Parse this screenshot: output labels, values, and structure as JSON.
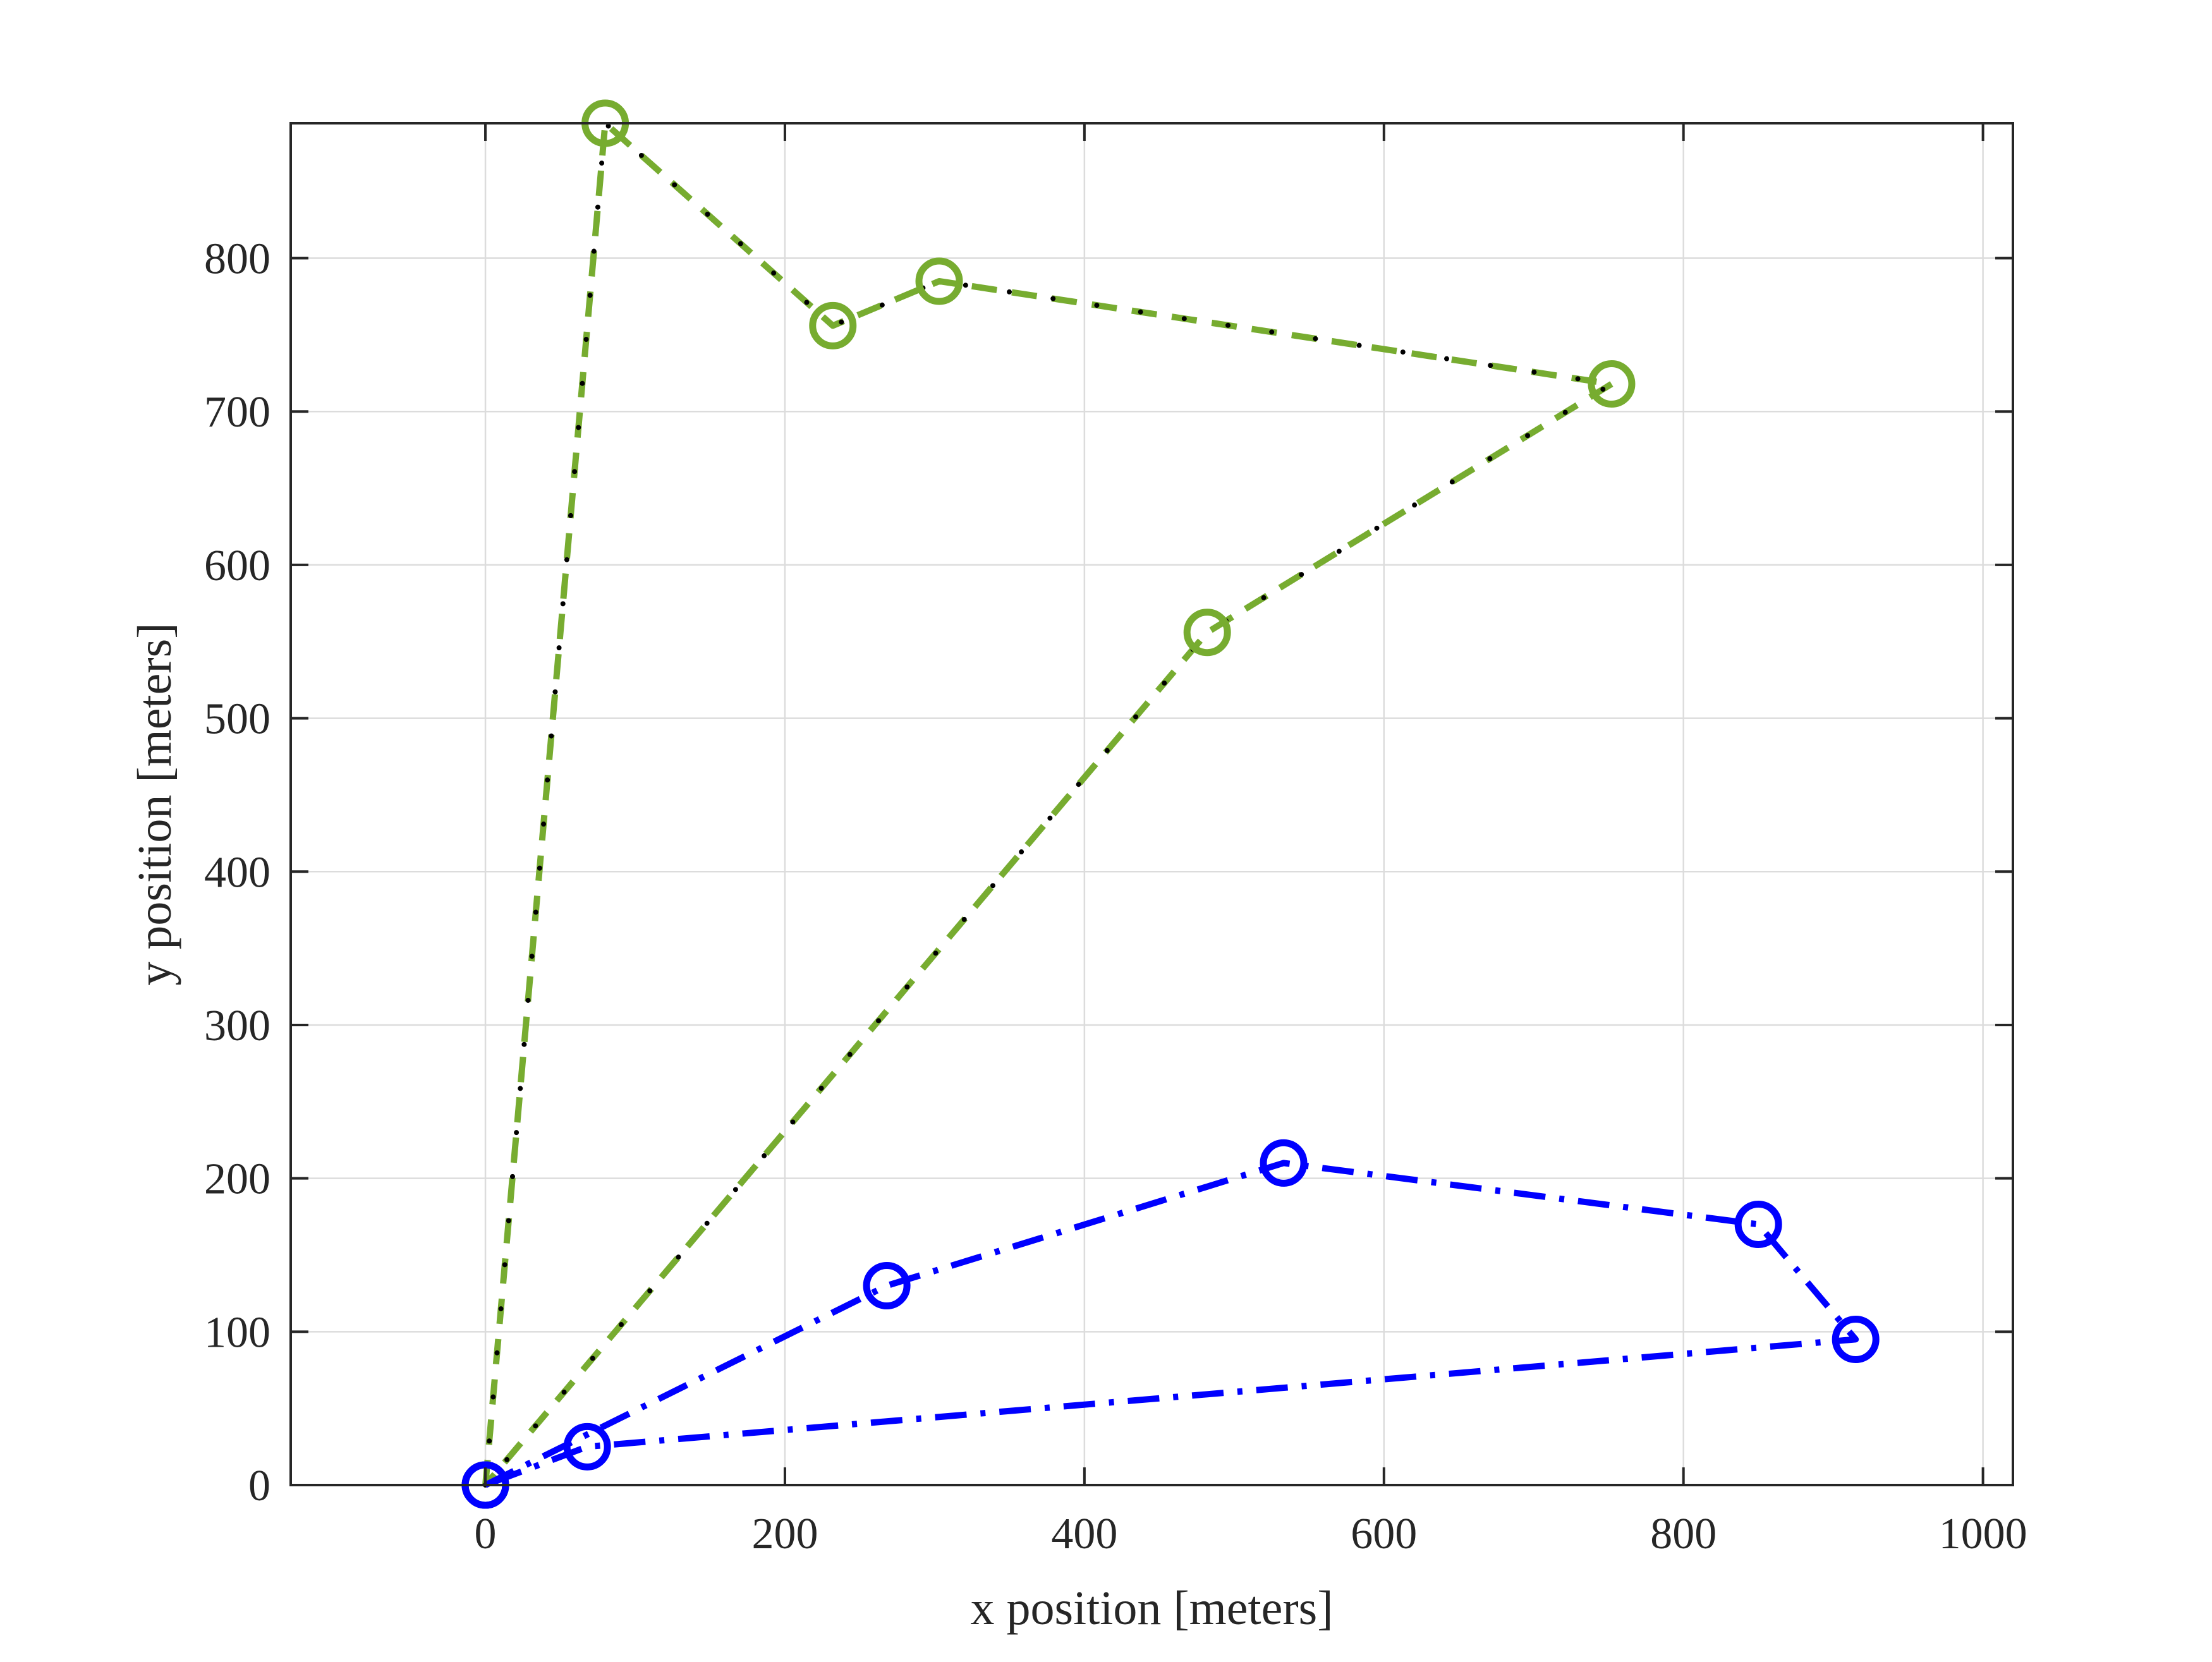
{
  "chart_data": {
    "type": "line",
    "title": "",
    "xlabel": "x position [meters]",
    "ylabel": "y position [meters]",
    "xlim": [
      -130,
      1020
    ],
    "ylim": [
      0,
      888
    ],
    "xticks": [
      0,
      200,
      400,
      600,
      800,
      1000
    ],
    "yticks": [
      0,
      100,
      200,
      300,
      400,
      500,
      600,
      700,
      800
    ],
    "grid": true,
    "legend": "none",
    "series": [
      {
        "color": "#77ac30",
        "line_style": "dashed with black dotted overlay",
        "marker": "circle",
        "x": [
          0,
          80,
          232,
          303,
          752,
          482,
          0
        ],
        "y": [
          0,
          888,
          756,
          785,
          718,
          556,
          0
        ]
      },
      {
        "color": "#0000ff",
        "line_style": "dash-dot",
        "marker": "circle",
        "x": [
          0,
          268,
          533,
          850,
          915,
          68,
          0
        ],
        "y": [
          0,
          130,
          210,
          170,
          95,
          25,
          0
        ]
      }
    ]
  }
}
